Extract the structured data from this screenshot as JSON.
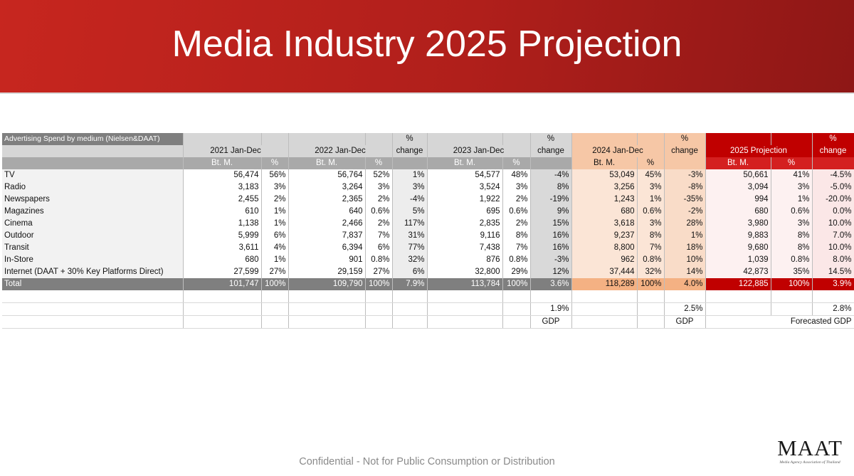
{
  "header": {
    "title": "Media Industry 2025 Projection"
  },
  "table": {
    "caption": "Advertising Spend by medium (Nielsen&DAAT)",
    "groups": [
      {
        "period": "2021 Jan-Dec",
        "unit": "Bt. M.",
        "share": "%"
      },
      {
        "period": "2022 Jan-Dec",
        "unit": "Bt. M.",
        "share": "%",
        "change_top": "%",
        "change_bottom": "change"
      },
      {
        "period": "2023 Jan-Dec",
        "unit": "Bt. M.",
        "share": "%",
        "change_top": "%",
        "change_bottom": "change"
      },
      {
        "period": "2024 Jan-Dec",
        "unit": "Bt. M.",
        "share": "%",
        "change_top": "%",
        "change_bottom": "change"
      },
      {
        "period": "2025 Projection",
        "unit": "Bt. M.",
        "share": "%",
        "change_top": "%",
        "change_bottom": "change"
      }
    ],
    "rows": [
      {
        "label": "TV",
        "cells": [
          "56,474",
          "56%",
          "56,764",
          "52%",
          "1%",
          "54,577",
          "48%",
          "-4%",
          "53,049",
          "45%",
          "-3%",
          "50,661",
          "41%",
          "-4.5%"
        ]
      },
      {
        "label": "Radio",
        "cells": [
          "3,183",
          "3%",
          "3,264",
          "3%",
          "3%",
          "3,524",
          "3%",
          "8%",
          "3,256",
          "3%",
          "-8%",
          "3,094",
          "3%",
          "-5.0%"
        ]
      },
      {
        "label": "Newspapers",
        "cells": [
          "2,455",
          "2%",
          "2,365",
          "2%",
          "-4%",
          "1,922",
          "2%",
          "-19%",
          "1,243",
          "1%",
          "-35%",
          "994",
          "1%",
          "-20.0%"
        ]
      },
      {
        "label": "Magazines",
        "cells": [
          "610",
          "1%",
          "640",
          "0.6%",
          "5%",
          "695",
          "0.6%",
          "9%",
          "680",
          "0.6%",
          "-2%",
          "680",
          "0.6%",
          "0.0%"
        ]
      },
      {
        "label": "Cinema",
        "cells": [
          "1,138",
          "1%",
          "2,466",
          "2%",
          "117%",
          "2,835",
          "2%",
          "15%",
          "3,618",
          "3%",
          "28%",
          "3,980",
          "3%",
          "10.0%"
        ]
      },
      {
        "label": "Outdoor",
        "cells": [
          "5,999",
          "6%",
          "7,837",
          "7%",
          "31%",
          "9,116",
          "8%",
          "16%",
          "9,237",
          "8%",
          "1%",
          "9,883",
          "8%",
          "7.0%"
        ]
      },
      {
        "label": "Transit",
        "cells": [
          "3,611",
          "4%",
          "6,394",
          "6%",
          "77%",
          "7,438",
          "7%",
          "16%",
          "8,800",
          "7%",
          "18%",
          "9,680",
          "8%",
          "10.0%"
        ]
      },
      {
        "label": "In-Store",
        "cells": [
          "680",
          "1%",
          "901",
          "0.8%",
          "32%",
          "876",
          "0.8%",
          "-3%",
          "962",
          "0.8%",
          "10%",
          "1,039",
          "0.8%",
          "8.0%"
        ]
      },
      {
        "label": "Internet (DAAT + 30% Key Platforms Direct)",
        "cells": [
          "27,599",
          "27%",
          "29,159",
          "27%",
          "6%",
          "32,800",
          "29%",
          "12%",
          "37,444",
          "32%",
          "14%",
          "42,873",
          "35%",
          "14.5%"
        ]
      }
    ],
    "total": {
      "label": "Total",
      "cells": [
        "101,747",
        "100%",
        "109,790",
        "100%",
        "7.9%",
        "113,784",
        "100%",
        "3.6%",
        "118,289",
        "100%",
        "4.0%",
        "122,885",
        "100%",
        "3.9%"
      ]
    },
    "gdp": [
      {
        "value": "1.9%",
        "label": "GDP"
      },
      {
        "value": "2.5%",
        "label": "GDP"
      },
      {
        "value": "2.8%",
        "label": "Forecasted GDP"
      }
    ]
  },
  "footer": {
    "notice": "Confidential - Not for Public Consumption or Distribution",
    "logo": "MAAT",
    "logo_tagline": "Media Agency Association of Thailand"
  }
}
